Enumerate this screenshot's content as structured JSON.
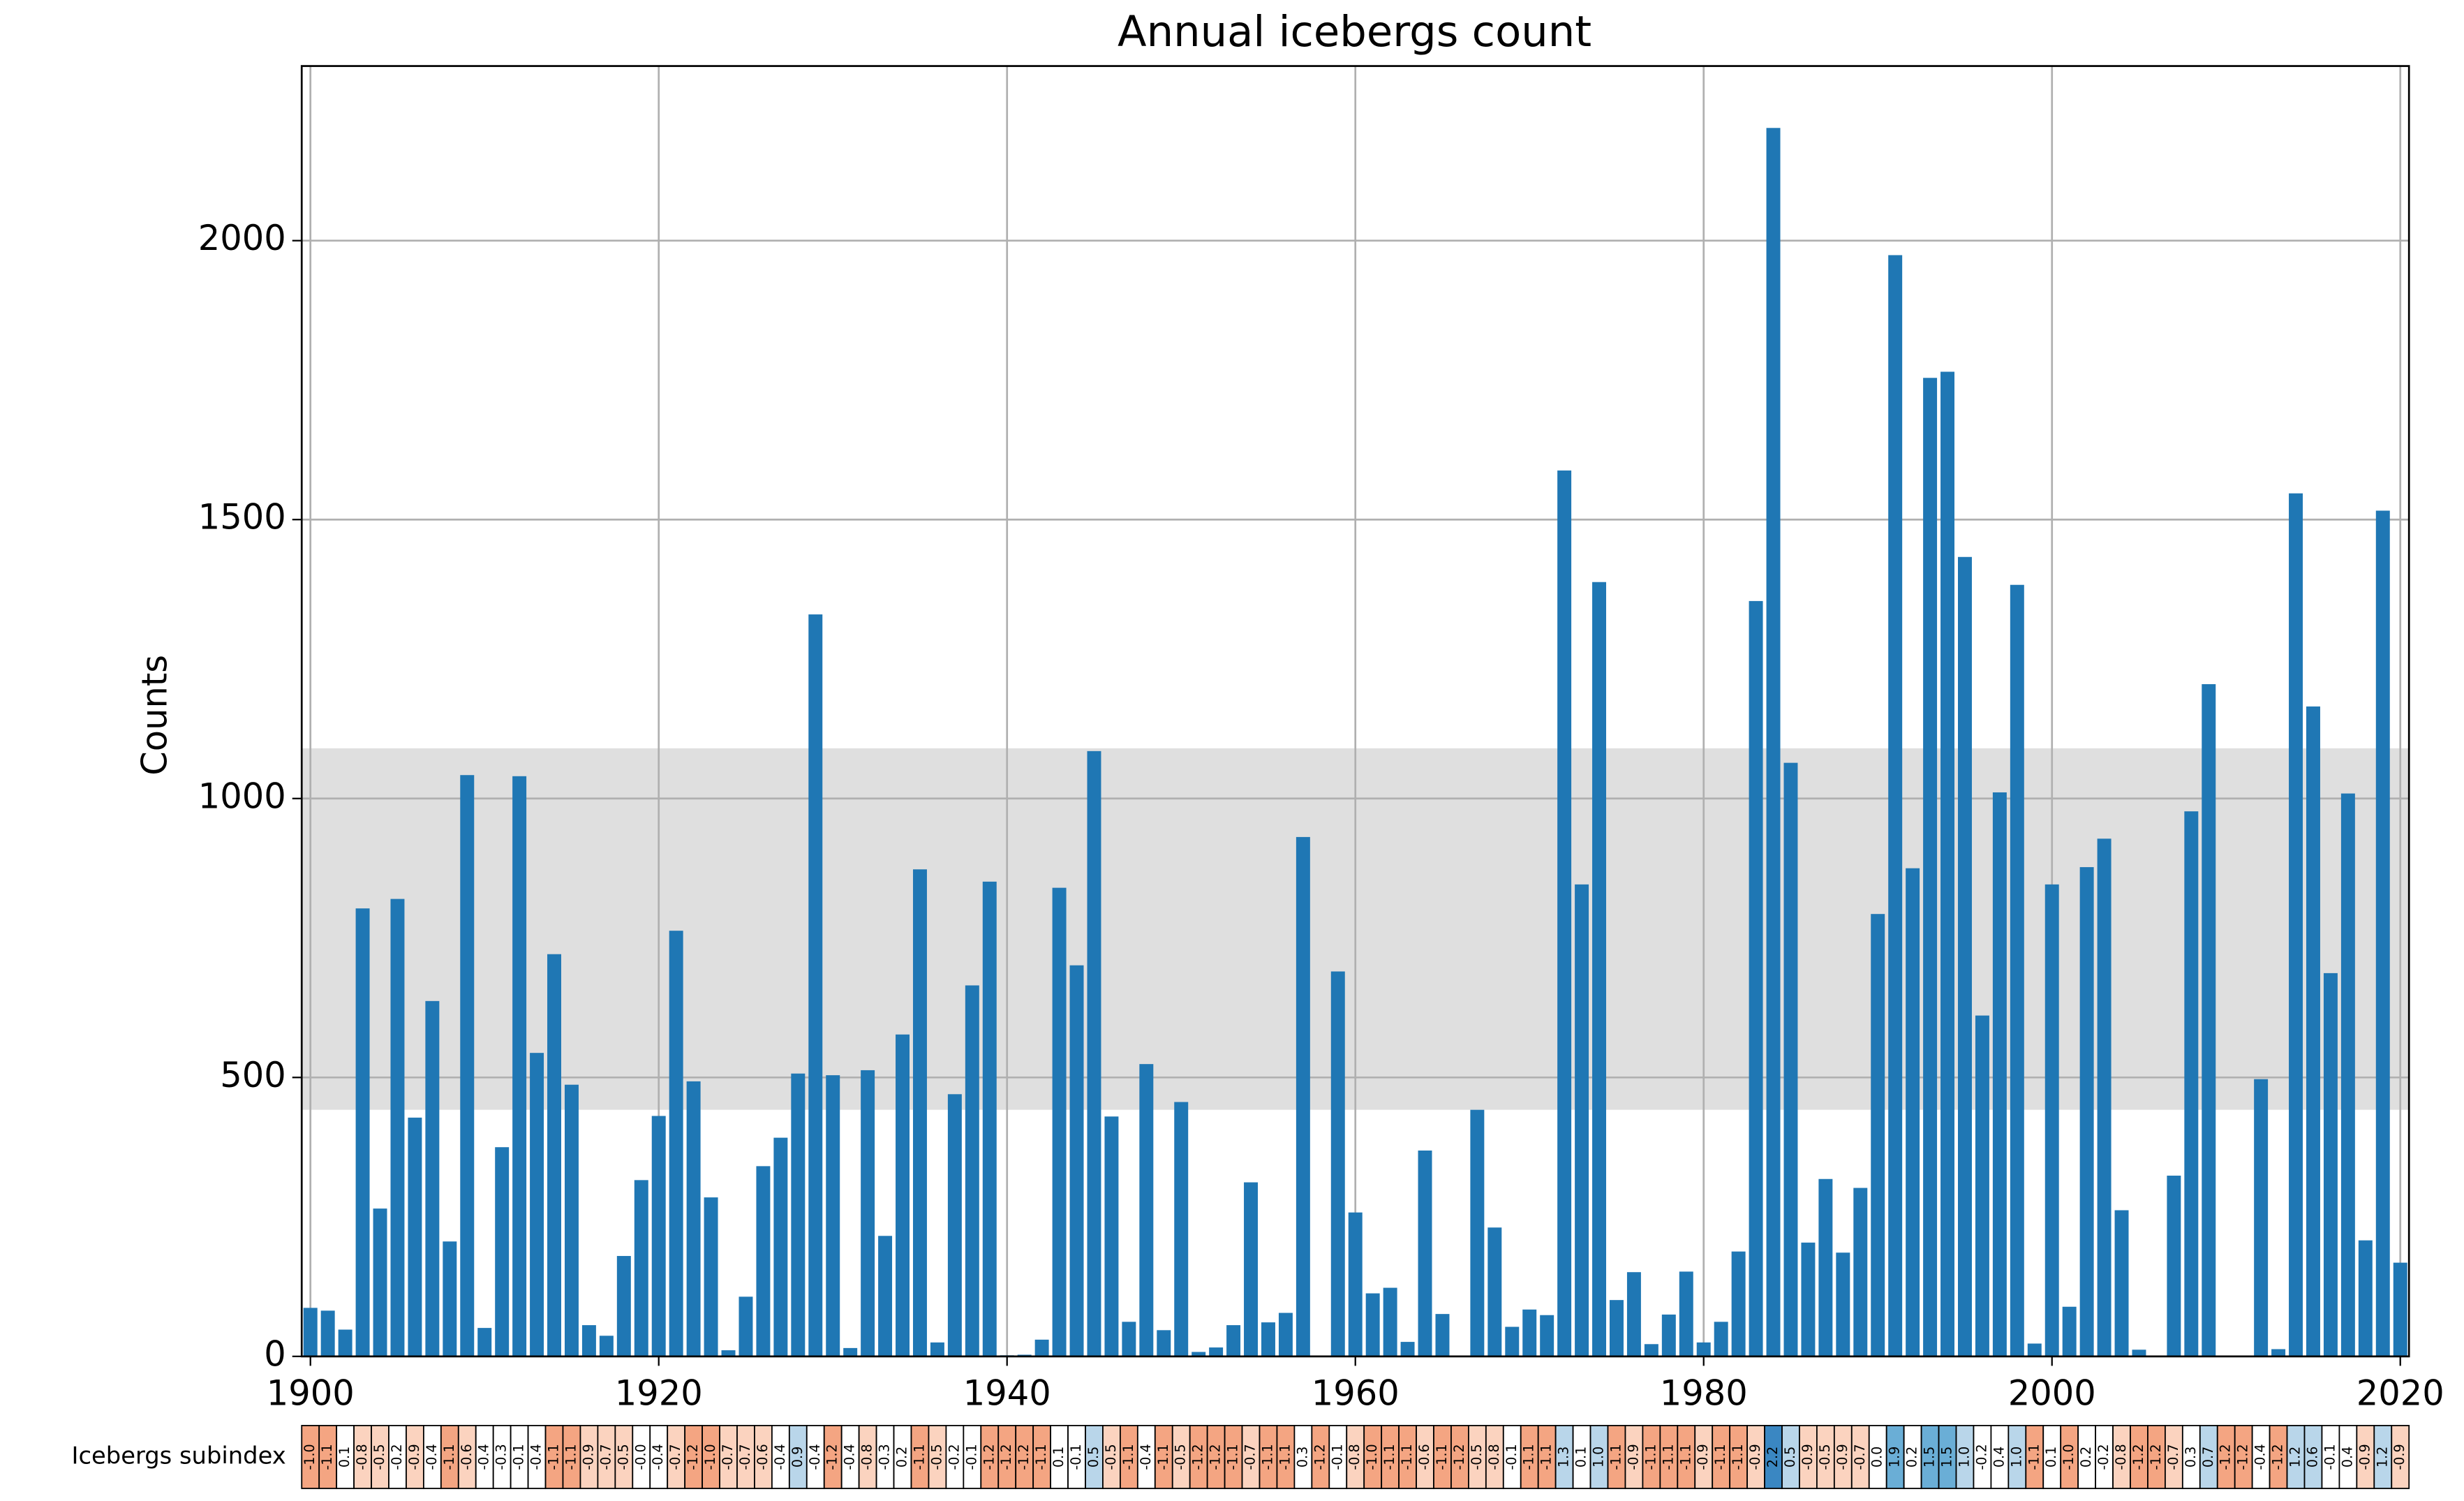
{
  "chart_data": {
    "type": "bar",
    "title": "Annual icebergs count",
    "y_label": "Counts",
    "color": "#1f77b4",
    "grid": true,
    "xlim": [
      1899.5,
      2020.5
    ],
    "xticks": [
      1900,
      1920,
      1940,
      1960,
      1980,
      2000,
      2020
    ],
    "ylim": [
      0,
      2313
    ],
    "yticks": [
      0,
      500,
      1000,
      1500,
      2000
    ],
    "band": [
      442,
      1090
    ],
    "x": [
      1900,
      1901,
      1902,
      1903,
      1904,
      1905,
      1906,
      1907,
      1908,
      1909,
      1910,
      1911,
      1912,
      1913,
      1914,
      1915,
      1916,
      1917,
      1918,
      1919,
      1920,
      1921,
      1922,
      1923,
      1924,
      1925,
      1926,
      1927,
      1928,
      1929,
      1930,
      1931,
      1932,
      1933,
      1934,
      1935,
      1936,
      1937,
      1938,
      1939,
      1940,
      1941,
      1942,
      1943,
      1944,
      1945,
      1946,
      1947,
      1948,
      1949,
      1950,
      1951,
      1952,
      1953,
      1954,
      1955,
      1956,
      1957,
      1958,
      1959,
      1960,
      1961,
      1962,
      1963,
      1964,
      1965,
      1966,
      1967,
      1968,
      1969,
      1970,
      1971,
      1972,
      1973,
      1974,
      1975,
      1976,
      1977,
      1978,
      1979,
      1980,
      1981,
      1982,
      1983,
      1984,
      1985,
      1986,
      1987,
      1988,
      1989,
      1990,
      1991,
      1992,
      1993,
      1994,
      1995,
      1996,
      1997,
      1998,
      1999,
      2000,
      2001,
      2002,
      2003,
      2004,
      2005,
      2006,
      2007,
      2008,
      2009,
      2010,
      2011,
      2012,
      2013,
      2014,
      2015,
      2016,
      2017,
      2018,
      2019,
      2020
    ],
    "values": [
      87,
      82,
      48,
      803,
      265,
      820,
      428,
      637,
      206,
      1042,
      51,
      375,
      1040,
      544,
      721,
      487,
      56,
      37,
      180,
      316,
      431,
      763,
      493,
      285,
      11,
      107,
      341,
      392,
      507,
      1330,
      504,
      15,
      513,
      216,
      577,
      873,
      25,
      470,
      665,
      851,
      2,
      3,
      30,
      840,
      701,
      1085,
      430,
      62,
      524,
      47,
      456,
      8,
      16,
      56,
      312,
      61,
      78,
      931,
      1,
      690,
      258,
      113,
      123,
      26,
      369,
      76,
      1,
      442,
      231,
      53,
      84,
      74,
      1588,
      846,
      1388,
      101,
      151,
      22,
      75,
      152,
      25,
      62,
      188,
      1354,
      2202,
      1064,
      204,
      318,
      186,
      302,
      793,
      1974,
      875,
      1754,
      1765,
      1433,
      611,
      1011,
      1383,
      23,
      846,
      89,
      877,
      928,
      262,
      12,
      1,
      324,
      977,
      1205,
      1,
      1,
      497,
      13,
      1547,
      1165,
      687,
      1009,
      208,
      1516,
      168
    ],
    "subindex": {
      "label": "Icebergs subindex",
      "values": [
        -1.0,
        -1.1,
        0.1,
        -0.8,
        -0.5,
        -0.2,
        -0.9,
        -0.4,
        -1.1,
        -0.6,
        -0.4,
        -0.3,
        -0.1,
        -0.4,
        -1.1,
        -1.1,
        -0.9,
        -0.7,
        -0.5,
        -0.0,
        -0.4,
        -0.7,
        -1.2,
        -1.0,
        -0.7,
        -0.7,
        -0.6,
        -0.4,
        0.9,
        -0.4,
        -1.2,
        -0.4,
        -0.8,
        -0.3,
        0.2,
        -1.1,
        -0.5,
        -0.2,
        -0.1,
        -1.2,
        -1.2,
        -1.2,
        -1.1,
        0.1,
        -0.1,
        0.5,
        -0.5,
        -1.1,
        -0.4,
        -1.1,
        -0.5,
        -1.2,
        -1.2,
        -1.1,
        -0.7,
        -1.1,
        -1.1,
        0.3,
        -1.2,
        -0.1,
        -0.8,
        -1.0,
        -1.1,
        -1.1,
        -0.6,
        -1.1,
        -1.2,
        -0.5,
        -0.8,
        -0.1,
        -1.1,
        -1.1,
        1.3,
        0.1,
        1.0,
        -1.1,
        -0.9,
        -1.1,
        -1.1,
        -1.1,
        -0.9,
        -1.1,
        -1.1,
        -0.9,
        2.2,
        0.5,
        -0.9,
        -0.5,
        -0.9,
        -0.7,
        0.0,
        1.9,
        0.2,
        1.5,
        1.5,
        1.0,
        -0.2,
        0.4,
        1.0,
        -1.1,
        0.1,
        -1.0,
        0.2,
        -0.2,
        -0.8,
        -1.2,
        -1.2,
        -0.7,
        0.3,
        0.7,
        -1.2,
        -1.2,
        -0.4,
        -1.2,
        1.2,
        0.6,
        -0.1,
        0.4,
        -0.9,
        1.2,
        -0.9
      ],
      "value_labels": [
        "-1.0",
        "-1.1",
        "0.1",
        "-0.8",
        "-0.5",
        "-0.2",
        "-0.9",
        "-0.4",
        "-1.1",
        "-0.6",
        "-0.4",
        "-0.3",
        "-0.1",
        "-0.4",
        "-1.1",
        "-1.1",
        "-0.9",
        "-0.7",
        "-0.5",
        "-0.0",
        "-0.4",
        "-0.7",
        "-1.2",
        "-1.0",
        "-0.7",
        "-0.7",
        "-0.6",
        "-0.4",
        "0.9",
        "-0.4",
        "-1.2",
        "-0.4",
        "-0.8",
        "-0.3",
        "0.2",
        "-1.1",
        "-0.5",
        "-0.2",
        "-0.1",
        "-1.2",
        "-1.2",
        "-1.2",
        "-1.1",
        "0.1",
        "-0.1",
        "0.5",
        "-0.5",
        "-1.1",
        "-0.4",
        "-1.1",
        "-0.5",
        "-1.2",
        "-1.2",
        "-1.1",
        "-0.7",
        "-1.1",
        "-1.1",
        "0.3",
        "-1.2",
        "-0.1",
        "-0.8",
        "-1.0",
        "-1.1",
        "-1.1",
        "-0.6",
        "-1.1",
        "-1.2",
        "-0.5",
        "-0.8",
        "-0.1",
        "-1.1",
        "-1.1",
        "1.3",
        "0.1",
        "1.0",
        "-1.1",
        "-0.9",
        "-1.1",
        "-1.1",
        "-1.1",
        "-0.9",
        "-1.1",
        "-1.1",
        "-0.9",
        "2.2",
        "0.5",
        "-0.9",
        "-0.5",
        "-0.9",
        "-0.7",
        "0.0",
        "1.9",
        "0.2",
        "1.5",
        "1.5",
        "1.0",
        "-0.2",
        "0.4",
        "1.0",
        "-1.1",
        "0.1",
        "-1.0",
        "0.2",
        "-0.2",
        "-0.8",
        "-1.2",
        "-1.2",
        "-0.7",
        "0.3",
        "0.7",
        "-1.2",
        "-1.2",
        "-0.4",
        "-1.2",
        "1.2",
        "0.6",
        "-0.1",
        "0.4",
        "-0.9",
        "1.2",
        "-0.9"
      ]
    }
  }
}
